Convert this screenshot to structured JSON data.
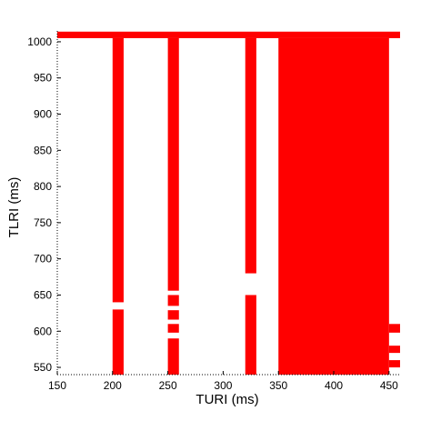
{
  "chart_data": {
    "type": "heatmap",
    "xlabel": "TURI (ms)",
    "ylabel": "TLRI (ms)",
    "xlim": [
      150,
      460
    ],
    "ylim": [
      540,
      1015
    ],
    "x_ticks": [
      150,
      200,
      250,
      300,
      350,
      400,
      450
    ],
    "y_ticks": [
      550,
      600,
      650,
      700,
      750,
      800,
      850,
      900,
      950,
      1000
    ],
    "fill_color": "#ff0000",
    "background_color": "#ffffff",
    "regions": [
      {
        "x": [
          150,
          460
        ],
        "y": [
          1005,
          1014
        ]
      },
      {
        "x": [
          200,
          210
        ],
        "y": [
          540,
          630
        ]
      },
      {
        "x": [
          200,
          210
        ],
        "y": [
          640,
          1005
        ]
      },
      {
        "x": [
          250,
          260
        ],
        "y": [
          540,
          590
        ]
      },
      {
        "x": [
          250,
          260
        ],
        "y": [
          598,
          610
        ]
      },
      {
        "x": [
          250,
          260
        ],
        "y": [
          616,
          629
        ]
      },
      {
        "x": [
          250,
          260
        ],
        "y": [
          635,
          650
        ]
      },
      {
        "x": [
          250,
          260
        ],
        "y": [
          656,
          1005
        ]
      },
      {
        "x": [
          320,
          330
        ],
        "y": [
          540,
          650
        ]
      },
      {
        "x": [
          320,
          330
        ],
        "y": [
          680,
          1005
        ]
      },
      {
        "x": [
          350,
          450
        ],
        "y": [
          540,
          1005
        ]
      },
      {
        "x": [
          450,
          460
        ],
        "y": [
          550,
          560
        ]
      },
      {
        "x": [
          450,
          460
        ],
        "y": [
          570,
          580
        ]
      },
      {
        "x": [
          450,
          460
        ],
        "y": [
          598,
          610
        ]
      }
    ]
  }
}
